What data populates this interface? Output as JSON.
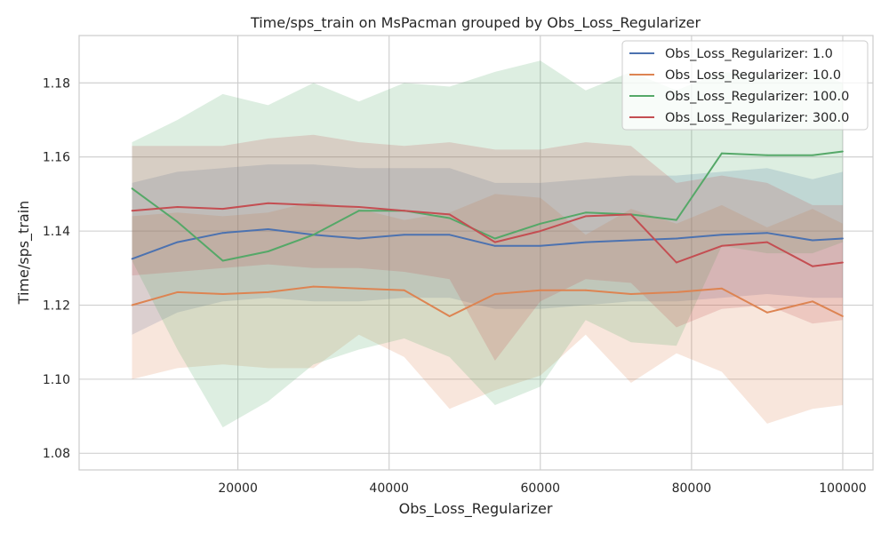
{
  "chart_data": {
    "type": "line",
    "title": "Time/sps_train on MsPacman grouped by Obs_Loss_Regularizer",
    "xlabel": "Obs_Loss_Regularizer",
    "ylabel": "Time/sps_train",
    "xlim": [
      -1000,
      104000
    ],
    "ylim": [
      1.0755,
      1.1928
    ],
    "xticks": [
      20000,
      40000,
      60000,
      80000,
      100000
    ],
    "xtick_labels": [
      "20000",
      "40000",
      "60000",
      "80000",
      "100000"
    ],
    "yticks": [
      1.08,
      1.1,
      1.12,
      1.14,
      1.16,
      1.18
    ],
    "ytick_labels": [
      "1.08",
      "1.10",
      "1.12",
      "1.14",
      "1.16",
      "1.18"
    ],
    "grid": true,
    "legend_position": "top-right",
    "x": [
      6000,
      12000,
      18000,
      24000,
      30000,
      36000,
      42000,
      48000,
      54000,
      60000,
      66000,
      72000,
      78000,
      84000,
      90000,
      96000,
      100000
    ],
    "series": [
      {
        "name": "Obs_Loss_Regularizer: 1.0",
        "color": "#4c72b0",
        "values": [
          1.1325,
          1.137,
          1.1395,
          1.1405,
          1.139,
          1.138,
          1.139,
          1.139,
          1.136,
          1.136,
          1.137,
          1.1375,
          1.138,
          1.139,
          1.1395,
          1.1375,
          1.138
        ],
        "band_low": [
          1.112,
          1.118,
          1.121,
          1.122,
          1.121,
          1.121,
          1.122,
          1.122,
          1.119,
          1.119,
          1.12,
          1.121,
          1.121,
          1.122,
          1.123,
          1.122,
          1.122
        ],
        "band_high": [
          1.153,
          1.156,
          1.157,
          1.158,
          1.158,
          1.157,
          1.157,
          1.157,
          1.153,
          1.153,
          1.154,
          1.155,
          1.155,
          1.156,
          1.157,
          1.154,
          1.156
        ]
      },
      {
        "name": "Obs_Loss_Regularizer: 10.0",
        "color": "#dd8452",
        "values": [
          1.12,
          1.1235,
          1.123,
          1.1235,
          1.125,
          1.1245,
          1.124,
          1.117,
          1.123,
          1.124,
          1.124,
          1.123,
          1.1235,
          1.1245,
          1.118,
          1.121,
          1.117
        ],
        "band_low": [
          1.1,
          1.103,
          1.104,
          1.103,
          1.103,
          1.112,
          1.106,
          1.092,
          1.097,
          1.101,
          1.112,
          1.099,
          1.107,
          1.102,
          1.088,
          1.092,
          1.093
        ],
        "band_high": [
          1.144,
          1.145,
          1.144,
          1.145,
          1.148,
          1.146,
          1.143,
          1.145,
          1.15,
          1.149,
          1.139,
          1.146,
          1.142,
          1.147,
          1.141,
          1.146,
          1.142
        ]
      },
      {
        "name": "Obs_Loss_Regularizer: 100.0",
        "color": "#55a868",
        "values": [
          1.1515,
          1.1425,
          1.132,
          1.1345,
          1.139,
          1.1455,
          1.1455,
          1.1435,
          1.138,
          1.142,
          1.145,
          1.1445,
          1.143,
          1.161,
          1.1605,
          1.1605,
          1.1615
        ],
        "band_low": [
          1.132,
          1.108,
          1.087,
          1.094,
          1.104,
          1.108,
          1.111,
          1.106,
          1.093,
          1.098,
          1.116,
          1.11,
          1.109,
          1.136,
          1.134,
          1.134,
          1.137
        ],
        "band_high": [
          1.164,
          1.17,
          1.177,
          1.174,
          1.18,
          1.175,
          1.18,
          1.179,
          1.183,
          1.186,
          1.178,
          1.183,
          1.178,
          1.183,
          1.182,
          1.183,
          1.18
        ]
      },
      {
        "name": "Obs_Loss_Regularizer: 300.0",
        "color": "#c44e52",
        "values": [
          1.1455,
          1.1465,
          1.146,
          1.1475,
          1.147,
          1.1465,
          1.1455,
          1.1445,
          1.137,
          1.14,
          1.144,
          1.1445,
          1.1315,
          1.136,
          1.137,
          1.1305,
          1.1315
        ],
        "band_low": [
          1.128,
          1.129,
          1.13,
          1.131,
          1.13,
          1.13,
          1.129,
          1.127,
          1.105,
          1.121,
          1.127,
          1.126,
          1.114,
          1.119,
          1.12,
          1.115,
          1.116
        ],
        "band_high": [
          1.163,
          1.163,
          1.163,
          1.165,
          1.166,
          1.164,
          1.163,
          1.164,
          1.162,
          1.162,
          1.164,
          1.163,
          1.153,
          1.155,
          1.153,
          1.147,
          1.147
        ]
      }
    ]
  }
}
